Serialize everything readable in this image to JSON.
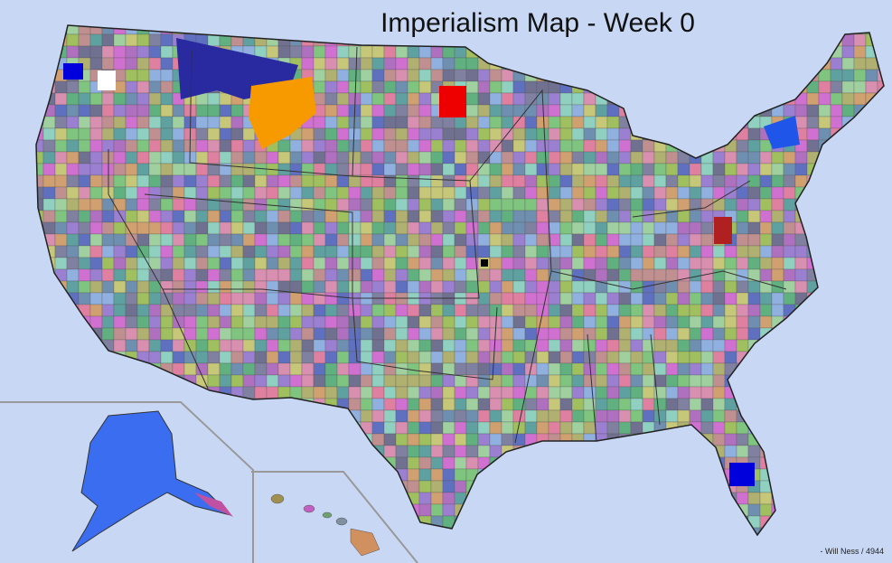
{
  "title": "Imperialism  Map  - Week 0",
  "credit": "- Will Ness / 4944"
}
